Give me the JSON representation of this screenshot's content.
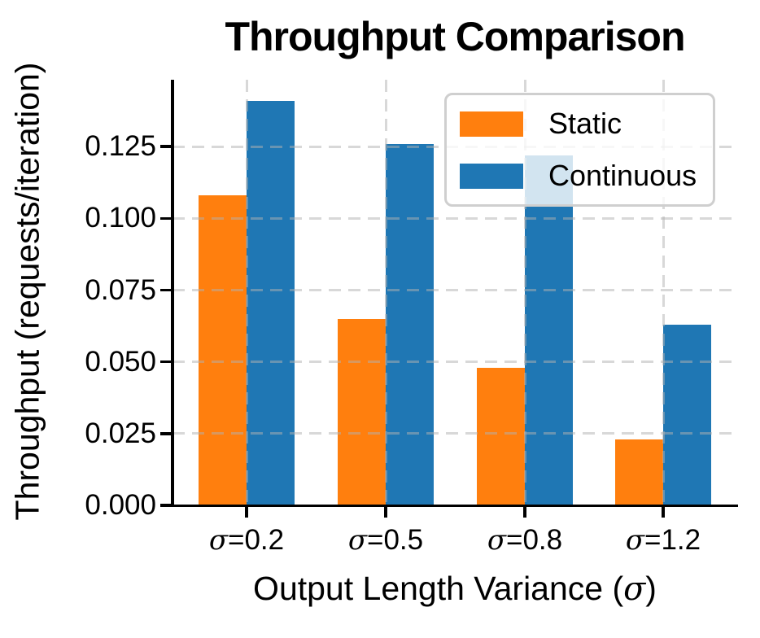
{
  "chart_data": {
    "type": "bar",
    "title": "Throughput Comparison",
    "xlabel": "Output Length Variance (σ)",
    "ylabel": "Throughput (requests/iteration)",
    "categories": [
      "σ=0.2",
      "σ=0.5",
      "σ=0.8",
      "σ=1.2"
    ],
    "series": [
      {
        "name": "Static",
        "color": "#ff7f0e",
        "values": [
          0.108,
          0.065,
          0.048,
          0.023
        ]
      },
      {
        "name": "Continuous",
        "color": "#1f77b4",
        "values": [
          0.141,
          0.126,
          0.122,
          0.063
        ]
      }
    ],
    "yticks": [
      0.0,
      0.025,
      0.05,
      0.075,
      0.1,
      0.125
    ],
    "ytick_labels": [
      "0.000",
      "0.025",
      "0.050",
      "0.075",
      "0.100",
      "0.125"
    ],
    "ylim": [
      0,
      0.1483
    ],
    "grid": "dashed",
    "grid_on_top": true,
    "legend_position": "upper-right",
    "colors": {
      "static_bar": "#ff7f0e",
      "continuous_bar": "#1f77b4",
      "grid": "#b0b0b0",
      "spine": "#000000",
      "legend_border": "#cfcfcf",
      "text": "#000000"
    }
  }
}
